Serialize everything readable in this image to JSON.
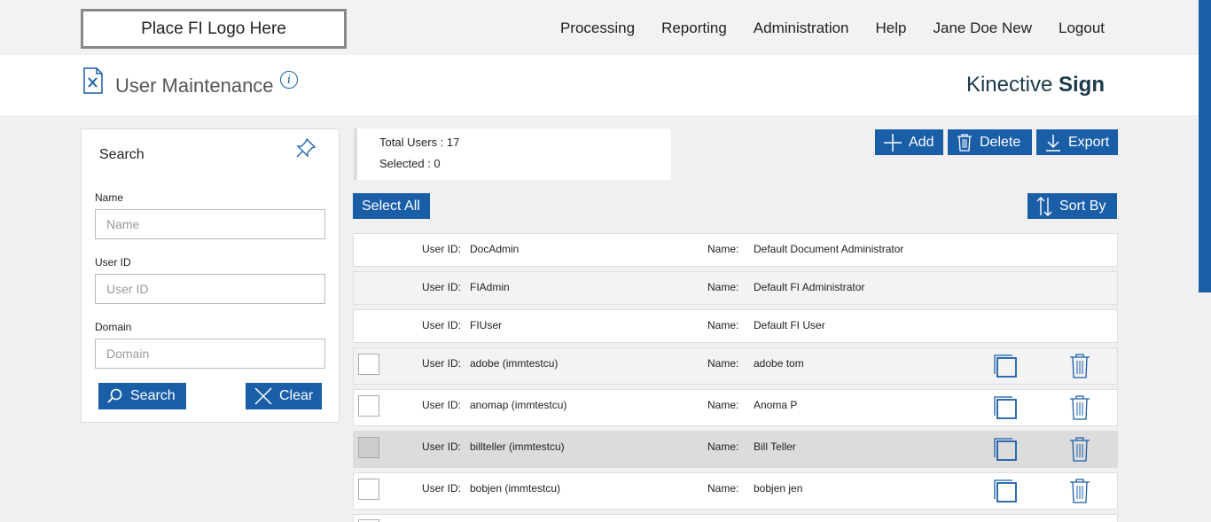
{
  "header": {
    "logo_text": "Place FI Logo Here",
    "nav": [
      "Processing",
      "Reporting",
      "Administration",
      "Help",
      "Jane Doe New",
      "Logout"
    ]
  },
  "title": {
    "page_title": "User Maintenance",
    "info_glyph": "i",
    "brand_light": "Kinective",
    "brand_bold": "Sign"
  },
  "search": {
    "title": "Search",
    "name_label": "Name",
    "name_placeholder": "Name",
    "userid_label": "User ID",
    "userid_placeholder": "User ID",
    "domain_label": "Domain",
    "domain_placeholder": "Domain",
    "search_button": "Search",
    "clear_button": "Clear"
  },
  "summary": {
    "total_users": "Total Users : 17",
    "selected": "Selected : 0"
  },
  "toolbar": {
    "add": "Add",
    "delete": "Delete",
    "export": "Export",
    "select_all": "Select All",
    "sort_by": "Sort By"
  },
  "row_labels": {
    "user_id": "User ID:",
    "name": "Name:"
  },
  "users": [
    {
      "user_id": "DocAdmin",
      "name": "Default Document Administrator"
    },
    {
      "user_id": "FIAdmin",
      "name": "Default FI Administrator"
    },
    {
      "user_id": "FIUser",
      "name": "Default FI User"
    },
    {
      "user_id": "adobe (immtestcu)",
      "name": "adobe tom"
    },
    {
      "user_id": "anomap (immtestcu)",
      "name": "Anoma P"
    },
    {
      "user_id": "billteller (immtestcu)",
      "name": "Bill Teller"
    },
    {
      "user_id": "bobjen (immtestcu)",
      "name": "bobjen jen"
    }
  ],
  "colors": {
    "accent": "#1a5ea8",
    "brand_text": "#1b3a4b"
  }
}
